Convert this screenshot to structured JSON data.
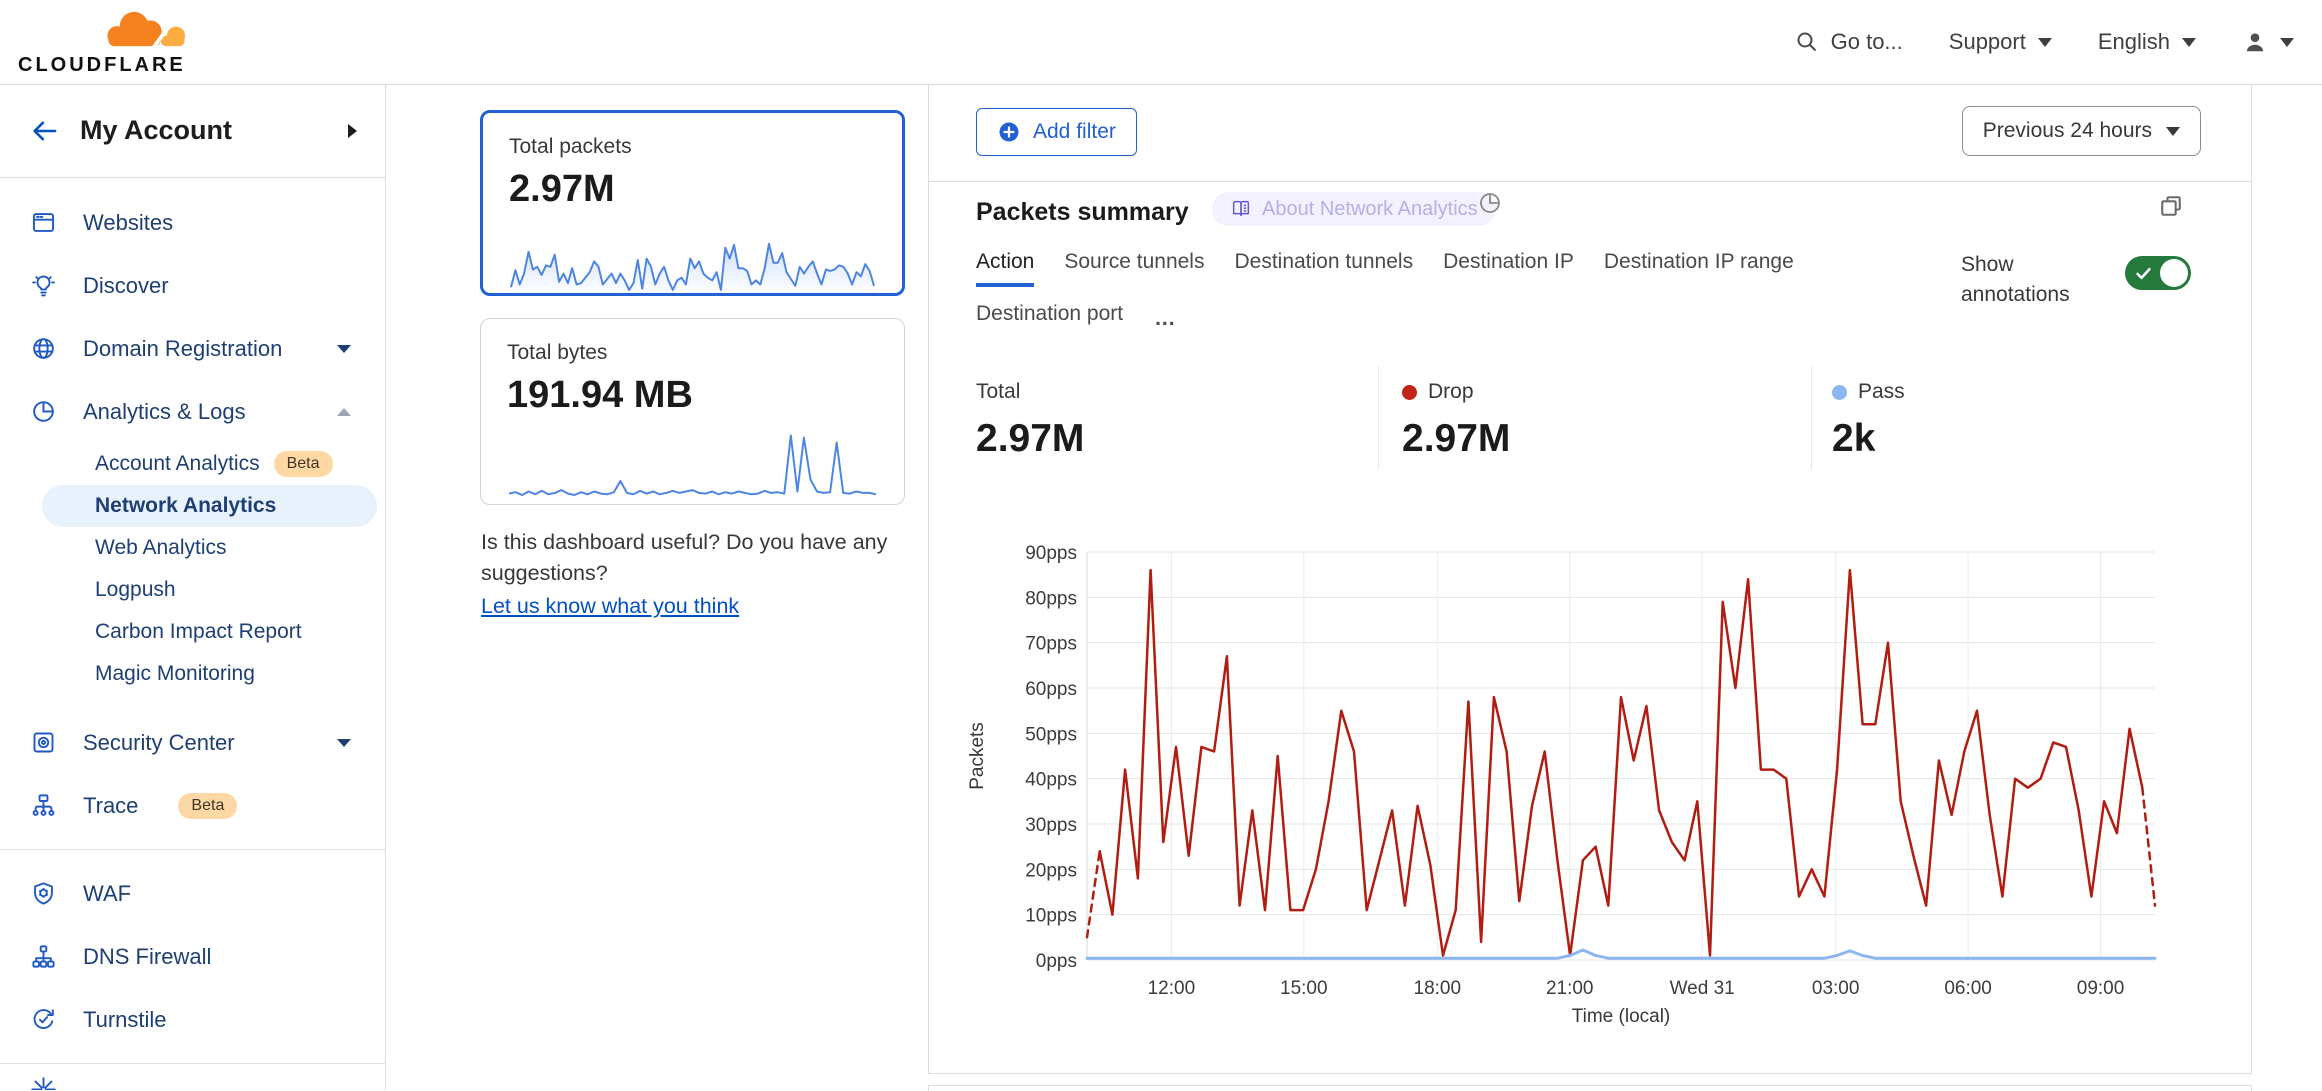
{
  "colors": {
    "brand_orange": "#f6821f",
    "brand_orange_light": "#fbad41",
    "accent_blue": "#2161d3",
    "link_blue": "#0051c3",
    "toggle_green": "#26793c",
    "drop_red": "#c22418",
    "pass_blue": "#8ab7f0"
  },
  "brand": {
    "name": "CLOUDFLARE"
  },
  "header": {
    "goto": "Go to...",
    "support": "Support",
    "language": "English"
  },
  "sidebar": {
    "account_label": "My Account",
    "items": [
      {
        "label": "Websites"
      },
      {
        "label": "Discover"
      },
      {
        "label": "Domain Registration"
      },
      {
        "label": "Analytics & Logs"
      },
      {
        "label": "Account Analytics",
        "badge": "Beta"
      },
      {
        "label": "Network Analytics"
      },
      {
        "label": "Web Analytics"
      },
      {
        "label": "Logpush"
      },
      {
        "label": "Carbon Impact Report"
      },
      {
        "label": "Magic Monitoring"
      },
      {
        "label": "Security Center"
      },
      {
        "label": "Trace",
        "badge": "Beta"
      },
      {
        "label": "WAF"
      },
      {
        "label": "DNS Firewall"
      },
      {
        "label": "Turnstile"
      }
    ]
  },
  "summary_cards": [
    {
      "label": "Total packets",
      "value": "2.97M",
      "spark": [
        10,
        35,
        14,
        30,
        62,
        36,
        40,
        28,
        42,
        40,
        58,
        18,
        30,
        16,
        38,
        14,
        16,
        24,
        32,
        48,
        40,
        14,
        22,
        30,
        16,
        30,
        20,
        6,
        16,
        50,
        8,
        52,
        40,
        14,
        30,
        40,
        20,
        6,
        20,
        24,
        14,
        52,
        38,
        48,
        30,
        24,
        20,
        32,
        6,
        68,
        52,
        72,
        38,
        38,
        34,
        14,
        20,
        14,
        38,
        74,
        46,
        46,
        60,
        32,
        22,
        12,
        40,
        30,
        40,
        48,
        30,
        14,
        36,
        34,
        36,
        42,
        40,
        30,
        14,
        32,
        26,
        44,
        34,
        12
      ]
    },
    {
      "label": "Total bytes",
      "value": "191.94 MB",
      "spark": [
        12,
        14,
        10,
        15,
        11,
        16,
        11,
        13,
        17,
        12,
        10,
        14,
        11,
        15,
        12,
        11,
        14,
        30,
        13,
        11,
        16,
        12,
        15,
        11,
        13,
        16,
        13,
        15,
        17,
        13,
        12,
        15,
        11,
        14,
        12,
        15,
        13,
        11,
        12,
        16,
        13,
        14,
        12,
        95,
        15,
        92,
        32,
        15,
        13,
        14,
        85,
        13,
        12,
        15,
        13,
        13,
        11
      ]
    }
  ],
  "feedback": {
    "question": "Is this dashboard useful? Do you have any suggestions?",
    "link": "Let us know what you think"
  },
  "toolbar": {
    "add_filter": "Add filter",
    "time_range": "Previous 24 hours"
  },
  "panel": {
    "title": "Packets summary",
    "about_badge": "About Network Analytics",
    "tabs": [
      "Action",
      "Source tunnels",
      "Destination tunnels",
      "Destination IP",
      "Destination IP range",
      "Destination port",
      "..."
    ],
    "show_annotations": "Show annotations",
    "stats": [
      {
        "label": "Total",
        "value": "2.97M"
      },
      {
        "label": "Drop",
        "value": "2.97M",
        "dot": "#c22418"
      },
      {
        "label": "Pass",
        "value": "2k",
        "dot": "#8ab7f0"
      }
    ]
  },
  "chart_data": {
    "type": "line",
    "title": "Packets summary",
    "xlabel": "Time (local)",
    "ylabel": "Packets",
    "y_unit": "pps",
    "ylim": [
      0,
      90
    ],
    "y_ticks": [
      0,
      10,
      20,
      30,
      40,
      50,
      60,
      70,
      80,
      90
    ],
    "grid": true,
    "x_ticks": [
      {
        "label": "12:00",
        "f": 0.079
      },
      {
        "label": "15:00",
        "f": 0.203
      },
      {
        "label": "18:00",
        "f": 0.328
      },
      {
        "label": "21:00",
        "f": 0.452
      },
      {
        "label": "Wed 31",
        "f": 0.576
      },
      {
        "label": "03:00",
        "f": 0.701
      },
      {
        "label": "06:00",
        "f": 0.825
      },
      {
        "label": "09:00",
        "f": 0.949
      }
    ],
    "series": [
      {
        "name": "Drop",
        "color": "#b21d12",
        "width": 2.5,
        "dashed_head": true,
        "dashed_tail": true,
        "values": [
          5,
          24,
          10,
          42,
          18,
          86,
          26,
          47,
          23,
          47,
          46,
          67,
          12,
          33,
          11,
          45,
          11,
          11,
          20,
          35,
          55,
          46,
          11,
          22,
          33,
          12,
          34,
          21,
          1,
          11,
          57,
          4,
          58,
          46,
          13,
          34,
          46,
          22,
          1,
          22,
          25,
          12,
          58,
          44,
          56,
          33,
          26,
          22,
          35,
          1,
          79,
          60,
          84,
          42,
          42,
          40,
          14,
          20,
          14,
          42,
          86,
          52,
          52,
          70,
          35,
          23,
          12,
          44,
          32,
          46,
          55,
          32,
          14,
          40,
          38,
          40,
          48,
          47,
          33,
          14,
          35,
          28,
          51,
          38,
          12
        ]
      },
      {
        "name": "Pass",
        "color": "#8cb6f0",
        "width": 3,
        "values": [
          0.4,
          0.4,
          0.4,
          0.4,
          0.4,
          0.4,
          0.4,
          0.4,
          0.4,
          0.4,
          0.4,
          0.4,
          0.4,
          0.4,
          0.4,
          0.4,
          0.4,
          0.4,
          0.4,
          0.4,
          0.4,
          0.4,
          0.4,
          0.4,
          0.4,
          0.4,
          0.4,
          0.4,
          0.4,
          0.4,
          0.4,
          0.4,
          0.4,
          0.4,
          0.4,
          0.4,
          0.4,
          0.4,
          1,
          2.2,
          1,
          0.4,
          0.4,
          0.4,
          0.4,
          0.4,
          0.4,
          0.4,
          0.4,
          0.4,
          0.4,
          0.4,
          0.4,
          0.4,
          0.4,
          0.4,
          0.4,
          0.4,
          0.4,
          1,
          2,
          1,
          0.4,
          0.4,
          0.4,
          0.4,
          0.4,
          0.4,
          0.4,
          0.4,
          0.4,
          0.4,
          0.4,
          0.4,
          0.4,
          0.4,
          0.4,
          0.4,
          0.4,
          0.4,
          0.4,
          0.4,
          0.4,
          0.4,
          0.4
        ]
      }
    ]
  }
}
